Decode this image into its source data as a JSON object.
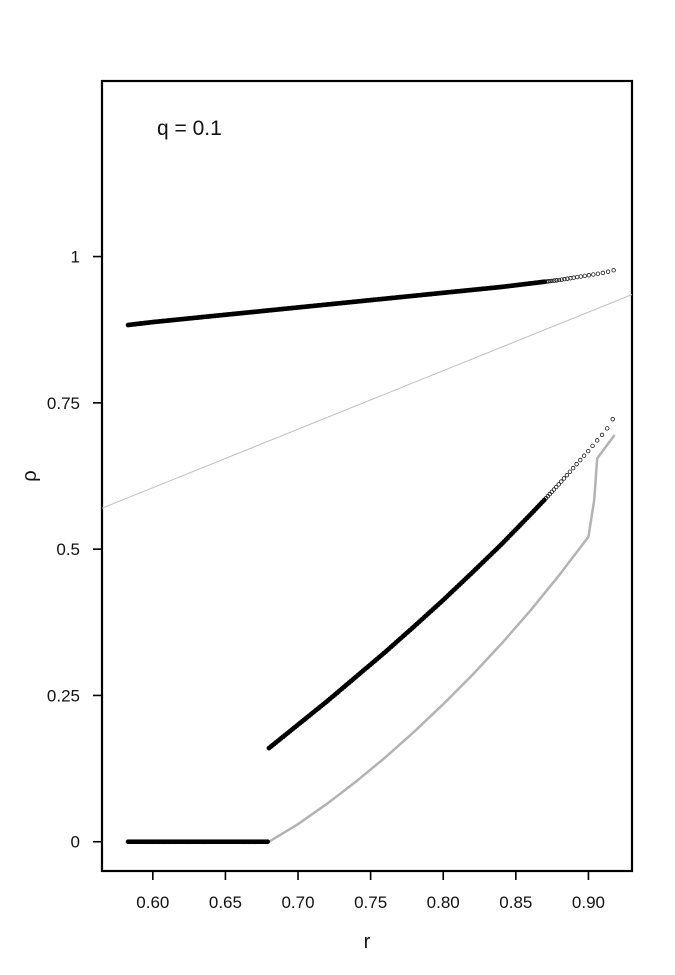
{
  "chart_data": {
    "type": "scatter",
    "annotation": "q = 0.1",
    "xlabel": "r",
    "ylabel": "ρ",
    "xlim": [
      0.565,
      0.93
    ],
    "ylim": [
      -0.05,
      1.3
    ],
    "xticks": [
      0.6,
      0.65,
      0.7,
      0.75,
      0.8,
      0.85,
      0.9
    ],
    "xtick_labels": [
      "0.60",
      "0.65",
      "0.70",
      "0.75",
      "0.80",
      "0.85",
      "0.90"
    ],
    "yticks": [
      0,
      0.25,
      0.5,
      0.75,
      1
    ],
    "ytick_labels": [
      "0",
      "0.25",
      "0.5",
      "0.75",
      "1"
    ],
    "grid": false,
    "colors": {
      "points": "#000000",
      "gray_curve": "#b3b3b3",
      "diagonal": "#c0c0c0"
    },
    "series": [
      {
        "kind": "points",
        "x": [
          0.583,
          0.6,
          0.62,
          0.64,
          0.66,
          0.68,
          0.7,
          0.72,
          0.74,
          0.76,
          0.78,
          0.8,
          0.82,
          0.84,
          0.86,
          0.88,
          0.885,
          0.89,
          0.895,
          0.9,
          0.905,
          0.91,
          0.915,
          0.918
        ],
        "y": [
          0.883,
          0.888,
          0.893,
          0.898,
          0.903,
          0.908,
          0.913,
          0.918,
          0.923,
          0.928,
          0.933,
          0.938,
          0.943,
          0.948,
          0.954,
          0.96,
          0.962,
          0.964,
          0.966,
          0.968,
          0.97,
          0.972,
          0.975,
          0.977
        ]
      },
      {
        "kind": "points",
        "x": [
          0.583,
          0.6,
          0.62,
          0.64,
          0.66,
          0.68
        ],
        "y": [
          0,
          0,
          0,
          0,
          0,
          0
        ]
      },
      {
        "kind": "points",
        "x": [
          0.68,
          0.7,
          0.72,
          0.74,
          0.76,
          0.78,
          0.8,
          0.82,
          0.84,
          0.86,
          0.87,
          0.88,
          0.885,
          0.89,
          0.895,
          0.9,
          0.905,
          0.91,
          0.915,
          0.918
        ],
        "y": [
          0.16,
          0.2,
          0.24,
          0.282,
          0.324,
          0.368,
          0.413,
          0.46,
          0.508,
          0.559,
          0.585,
          0.612,
          0.626,
          0.64,
          0.654,
          0.668,
          0.683,
          0.697,
          0.713,
          0.729
        ]
      },
      {
        "kind": "line",
        "x": [
          0.68,
          0.7,
          0.72,
          0.74,
          0.76,
          0.78,
          0.8,
          0.82,
          0.84,
          0.86,
          0.88,
          0.9,
          0.904,
          0.906,
          0.918
        ],
        "y": [
          0,
          0.03,
          0.065,
          0.103,
          0.144,
          0.188,
          0.235,
          0.285,
          0.338,
          0.395,
          0.456,
          0.521,
          0.584,
          0.655,
          0.695
        ]
      },
      {
        "kind": "reference",
        "x": [
          0.565,
          0.93
        ],
        "y": [
          0.57,
          0.935
        ]
      }
    ]
  }
}
